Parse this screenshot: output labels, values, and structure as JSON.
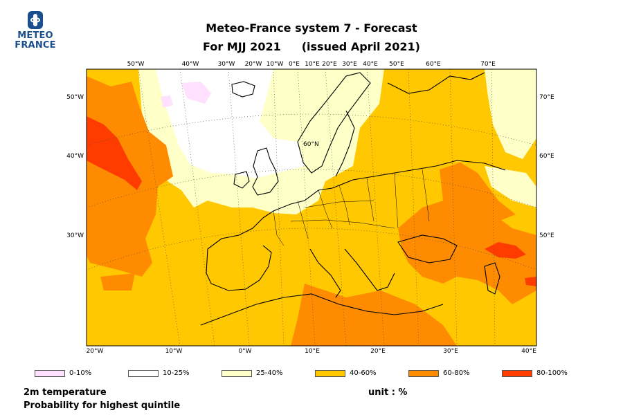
{
  "logo": {
    "line1": "METEO",
    "line2": "FRANCE"
  },
  "title": {
    "line1": "Meteo-France system 7  -  Forecast",
    "period": "For MJJ 2021",
    "issued": "(issued April 2021)"
  },
  "map": {
    "top_lon_labels": [
      "50°W",
      "40°W",
      "30°W",
      "20°W",
      "10°W",
      "0°E",
      "10°E",
      "20°E",
      "30°E",
      "40°E",
      "50°E",
      "60°E",
      "70°E"
    ],
    "left_lat_labels": [
      "50°W",
      "40°W",
      "30°W"
    ],
    "right_lat_labels": [
      "70°E",
      "60°E",
      "50°E"
    ],
    "bottom_lon_labels": [
      "20°W",
      "10°W",
      "0°W",
      "10°E",
      "20°E",
      "30°E",
      "40°E"
    ],
    "inner_label": "60°N",
    "colors": {
      "p0_10": "#ffe0ff",
      "p10_25": "#ffffff",
      "p25_40": "#ffffc8",
      "p40_60": "#ffc800",
      "p60_80": "#ff8c00",
      "p80_100": "#ff3c00",
      "coast": "#000000"
    }
  },
  "legend": [
    {
      "label": "0-10%",
      "color": "#ffe0ff"
    },
    {
      "label": "10-25%",
      "color": "#ffffff"
    },
    {
      "label": "25-40%",
      "color": "#ffffc8"
    },
    {
      "label": "40-60%",
      "color": "#ffc800"
    },
    {
      "label": "60-80%",
      "color": "#ff8c00"
    },
    {
      "label": "80-100%",
      "color": "#ff3c00"
    }
  ],
  "footer": {
    "variable": "2m temperature",
    "description": "Probability for highest quintile",
    "unit": "unit : %"
  }
}
